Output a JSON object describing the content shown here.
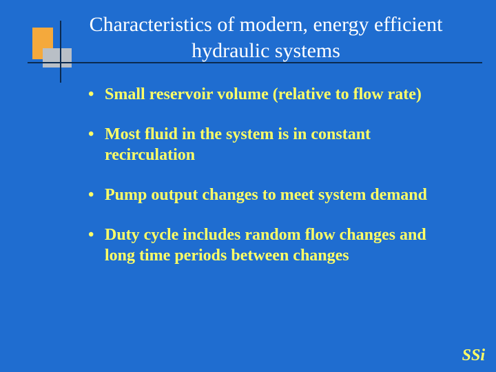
{
  "slide": {
    "title": "Characteristics of modern, energy efficient hydraulic systems",
    "bullets": [
      "Small reservoir volume (relative to flow rate)",
      "Most fluid in the system is in constant recirculation",
      "Pump output changes to meet system demand",
      "Duty cycle includes random flow changes and long time periods between changes"
    ],
    "logo_text": "SSi"
  },
  "style": {
    "background_color": "#1f6dd0",
    "title_color": "#ffffff",
    "title_fontsize": 30,
    "bullet_color": "#ffff66",
    "bullet_fontsize": 24,
    "bullet_fontweight": "bold",
    "logo_color": "#ffff66",
    "logo_fontsize": 24,
    "deco": {
      "orange": "#f4a93c",
      "gray": "#b9bfc6",
      "line": "#0a2a50"
    }
  }
}
